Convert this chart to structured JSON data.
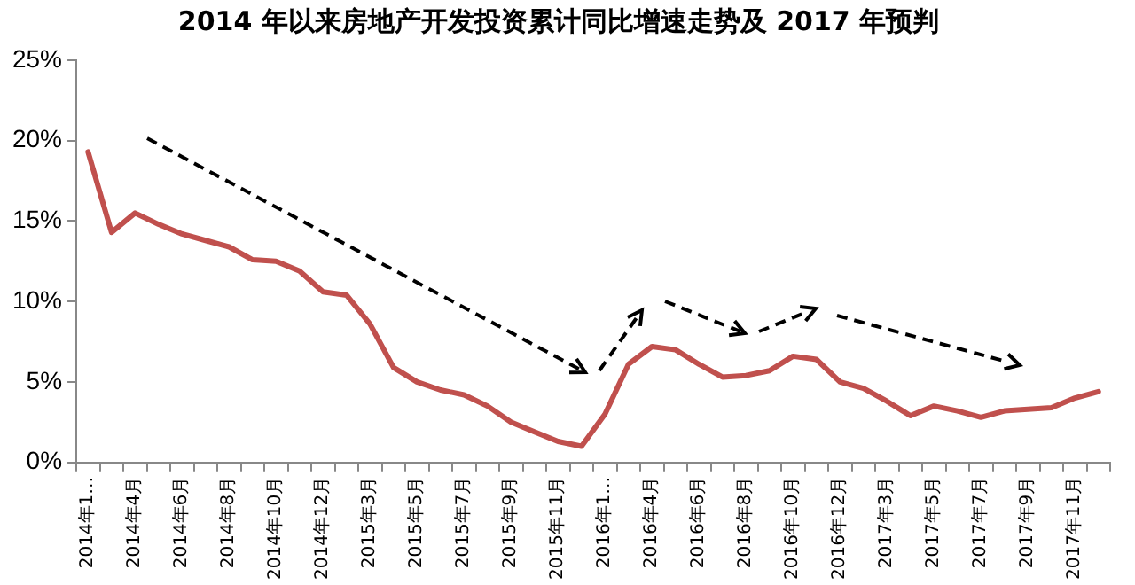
{
  "chart_data": {
    "type": "line",
    "title": "2014 年以来房地产开发投资累计同比增速走势及 2017 年预判",
    "categories": [
      "2014年1…",
      null,
      "2014年4月",
      null,
      "2014年6月",
      null,
      "2014年8月",
      null,
      "2014年10月",
      null,
      "2014年12月",
      null,
      "2015年3月",
      null,
      "2015年5月",
      null,
      "2015年7月",
      null,
      "2015年9月",
      null,
      "2015年11月",
      null,
      "2016年1…",
      null,
      "2016年4月",
      null,
      "2016年6月",
      null,
      "2016年8月",
      null,
      "2016年10月",
      null,
      "2016年12月",
      null,
      "2017年3月",
      null,
      "2017年5月",
      null,
      "2017年7月",
      null,
      "2017年9月",
      null,
      "2017年11月",
      null
    ],
    "series": [
      {
        "color": "#c0504d",
        "values": [
          19.3,
          14.3,
          15.5,
          14.8,
          14.2,
          13.8,
          13.4,
          12.6,
          12.5,
          11.9,
          10.6,
          10.4,
          8.6,
          5.9,
          5.0,
          4.5,
          4.2,
          3.5,
          2.5,
          1.9,
          1.3,
          1.0,
          3.0,
          6.1,
          7.2,
          7.0,
          6.1,
          5.3,
          5.4,
          5.7,
          6.6,
          6.4,
          5.0,
          4.6,
          3.8,
          2.9,
          3.5,
          3.2,
          2.8,
          3.2,
          3.3,
          3.4,
          4.0,
          4.4
        ]
      }
    ],
    "ylim": [
      0,
      25
    ],
    "yticks": [
      {
        "value": 0,
        "label": "0%"
      },
      {
        "value": 5,
        "label": "5%"
      },
      {
        "value": 10,
        "label": "10%"
      },
      {
        "value": 15,
        "label": "15%"
      },
      {
        "value": 20,
        "label": "20%"
      },
      {
        "value": 25,
        "label": "25%"
      }
    ],
    "grid": false,
    "legend": false,
    "marker": "none",
    "line_style": "solid"
  }
}
